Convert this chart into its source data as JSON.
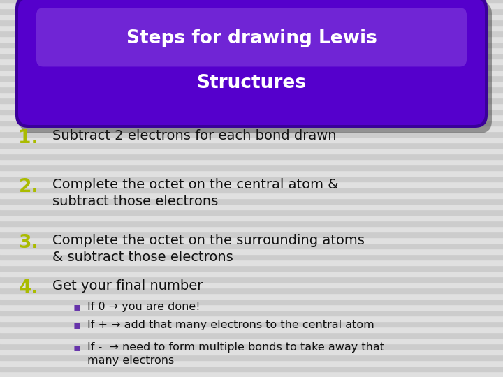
{
  "title_line1": "Steps for drawing Lewis",
  "title_line2": "Structures",
  "title_text_color": "#ffffff",
  "title_bg_color": "#5500cc",
  "title_bg_dark": "#3a0099",
  "title_highlight": "#8844dd",
  "background_color": "#d8d8d8",
  "stripe_color_light": "#e0e0e0",
  "stripe_color_dark": "#cccccc",
  "number_color": "#aabb00",
  "text_color": "#111111",
  "bullet_color": "#6633aa",
  "items": [
    {
      "num": "1.",
      "text": "Subtract 2 electrons for each bond drawn"
    },
    {
      "num": "2.",
      "text": "Complete the octet on the central atom &\nsubtract those electrons"
    },
    {
      "num": "3.",
      "text": "Complete the octet on the surrounding atoms\n& subtract those electrons"
    },
    {
      "num": "4.",
      "text": "Get your final number"
    }
  ],
  "bullets": [
    "If 0 → you are done!",
    "If + → add that many electrons to the central atom",
    "If -  → need to form multiple bonds to take away that\nmany electrons"
  ],
  "title_fontsize": 19,
  "num_fontsize": 19,
  "text_fontsize": 14,
  "bullet_fontsize": 11.5
}
